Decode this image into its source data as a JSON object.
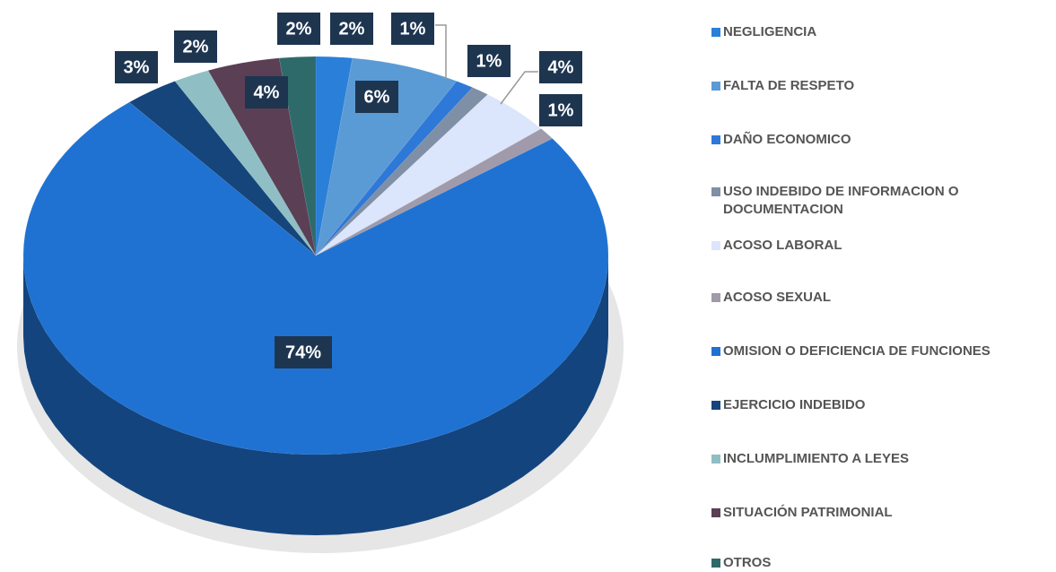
{
  "chart_data": {
    "type": "pie",
    "categories": [
      "NEGLIGENCIA",
      "FALTA DE RESPETO",
      "DAÑO ECONOMICO",
      "USO INDEBIDO DE INFORMACION O DOCUMENTACION",
      "ACOSO LABORAL",
      "ACOSO SEXUAL",
      "OMISION O DEFICIENCIA DE FUNCIONES",
      "EJERCICIO INDEBIDO",
      "INCLUMPLIMIENTO A LEYES",
      "SITUACIÓN PATRIMONIAL",
      "OTROS"
    ],
    "values": [
      2,
      6,
      1,
      1,
      4,
      1,
      74,
      3,
      2,
      4,
      2
    ],
    "value_labels": [
      "2%",
      "6%",
      "1%",
      "1%",
      "4%",
      "1%",
      "74%",
      "3%",
      "2%",
      "4%",
      "2%"
    ],
    "colors": [
      "#2a7fd8",
      "#5b9bd5",
      "#2e78d8",
      "#7f8fa6",
      "#dbe5fb",
      "#a09aaa",
      "#1f72d2",
      "#15457a",
      "#8fbfc4",
      "#5a3f55",
      "#2f6a6a"
    ],
    "legend": "right"
  }
}
